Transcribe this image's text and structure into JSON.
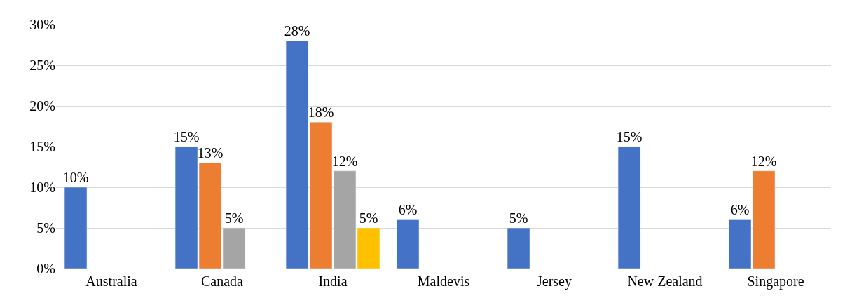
{
  "chart_data": {
    "type": "bar",
    "categories": [
      "Australia",
      "Canada",
      "India",
      "Maldevis",
      "Jersey",
      "New Zealand",
      "Singapore"
    ],
    "series": [
      {
        "color": "#4472c4",
        "values": [
          10,
          15,
          28,
          6,
          5,
          15,
          6
        ],
        "value_labels": [
          "10%",
          "15%",
          "28%",
          "6%",
          "5%",
          "15%",
          "6%"
        ]
      },
      {
        "color": "#ed7d31",
        "values": [
          null,
          13,
          18,
          null,
          null,
          null,
          12
        ],
        "value_labels": [
          null,
          "13%",
          "18%",
          null,
          null,
          null,
          "12%"
        ]
      },
      {
        "color": "#a5a5a5",
        "values": [
          null,
          5,
          12,
          null,
          null,
          null,
          null
        ],
        "value_labels": [
          null,
          "5%",
          "12%",
          null,
          null,
          null,
          null
        ]
      },
      {
        "color": "#ffc000",
        "values": [
          null,
          null,
          5,
          null,
          null,
          null,
          null
        ],
        "value_labels": [
          null,
          null,
          "5%",
          null,
          null,
          null,
          null
        ]
      }
    ],
    "ylim": [
      0,
      30
    ],
    "yticks": [
      {
        "value": 0,
        "label": "0%"
      },
      {
        "value": 5,
        "label": "5%"
      },
      {
        "value": 10,
        "label": "10%"
      },
      {
        "value": 15,
        "label": "15%"
      },
      {
        "value": 20,
        "label": "20%"
      },
      {
        "value": 25,
        "label": "25%"
      },
      {
        "value": 30,
        "label": "30%"
      }
    ],
    "grid": "y"
  }
}
